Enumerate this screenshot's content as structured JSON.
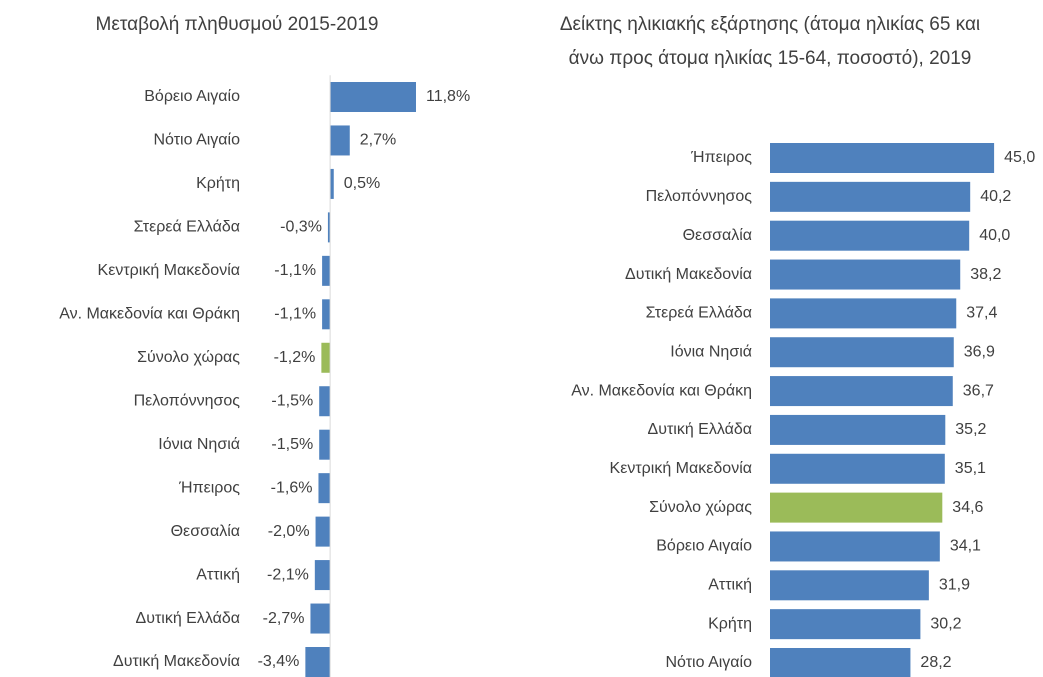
{
  "chart_data": [
    {
      "type": "hbar",
      "title": "Μεταβολή πληθυσμού 2015-2019",
      "categories": [
        "Βόρειο Αιγαίο",
        "Νότιο Αιγαίο",
        "Κρήτη",
        "Στερεά Ελλάδα",
        "Κεντρική Μακεδονία",
        "Αν. Μακεδονία και Θράκη",
        "Σύνολο χώρας",
        "Πελοπόννησος",
        "Ιόνια Νησιά",
        "Ήπειρος",
        "Θεσσαλία",
        "Αττική",
        "Δυτική Ελλάδα",
        "Δυτική Μακεδονία"
      ],
      "values": [
        11.8,
        2.7,
        0.5,
        -0.3,
        -1.1,
        -1.1,
        -1.2,
        -1.5,
        -1.5,
        -1.6,
        -2.0,
        -2.1,
        -2.7,
        -3.4
      ],
      "value_labels": [
        "11,8%",
        "2,7%",
        "0,5%",
        "-0,3%",
        "-1,1%",
        "-1,1%",
        "-1,2%",
        "-1,5%",
        "-1,5%",
        "-1,6%",
        "-2,0%",
        "-2,1%",
        "-2,7%",
        "-3,4%"
      ],
      "colors": [
        "#4f81bd",
        "#4f81bd",
        "#4f81bd",
        "#4f81bd",
        "#4f81bd",
        "#4f81bd",
        "#9bbb59",
        "#4f81bd",
        "#4f81bd",
        "#4f81bd",
        "#4f81bd",
        "#4f81bd",
        "#4f81bd",
        "#4f81bd"
      ],
      "xlim": [
        -4,
        14
      ]
    },
    {
      "type": "hbar",
      "title": "Δείκτης ηλικιακής εξάρτησης (άτομα ηλικίας 65 και άνω προς άτομα ηλικίας 15-64, ποσοστό), 2019",
      "categories": [
        "Ήπειρος",
        "Πελοπόννησος",
        "Θεσσαλία",
        "Δυτική Μακεδονία",
        "Στερεά Ελλάδα",
        "Ιόνια Νησιά",
        "Αν. Μακεδονία και Θράκη",
        "Δυτική Ελλάδα",
        "Κεντρική Μακεδονία",
        "Σύνολο χώρας",
        "Βόρειο Αιγαίο",
        "Αττική",
        "Κρήτη",
        "Νότιο Αιγαίο"
      ],
      "values": [
        45.0,
        40.2,
        40.0,
        38.2,
        37.4,
        36.9,
        36.7,
        35.2,
        35.1,
        34.6,
        34.1,
        31.9,
        30.2,
        28.2
      ],
      "value_labels": [
        "45,0",
        "40,2",
        "40,0",
        "38,2",
        "37,4",
        "36,9",
        "36,7",
        "35,2",
        "35,1",
        "34,6",
        "34,1",
        "31,9",
        "30,2",
        "28,2"
      ],
      "colors": [
        "#4f81bd",
        "#4f81bd",
        "#4f81bd",
        "#4f81bd",
        "#4f81bd",
        "#4f81bd",
        "#4f81bd",
        "#4f81bd",
        "#4f81bd",
        "#9bbb59",
        "#4f81bd",
        "#4f81bd",
        "#4f81bd",
        "#4f81bd"
      ],
      "xlim": [
        0,
        50
      ]
    }
  ]
}
